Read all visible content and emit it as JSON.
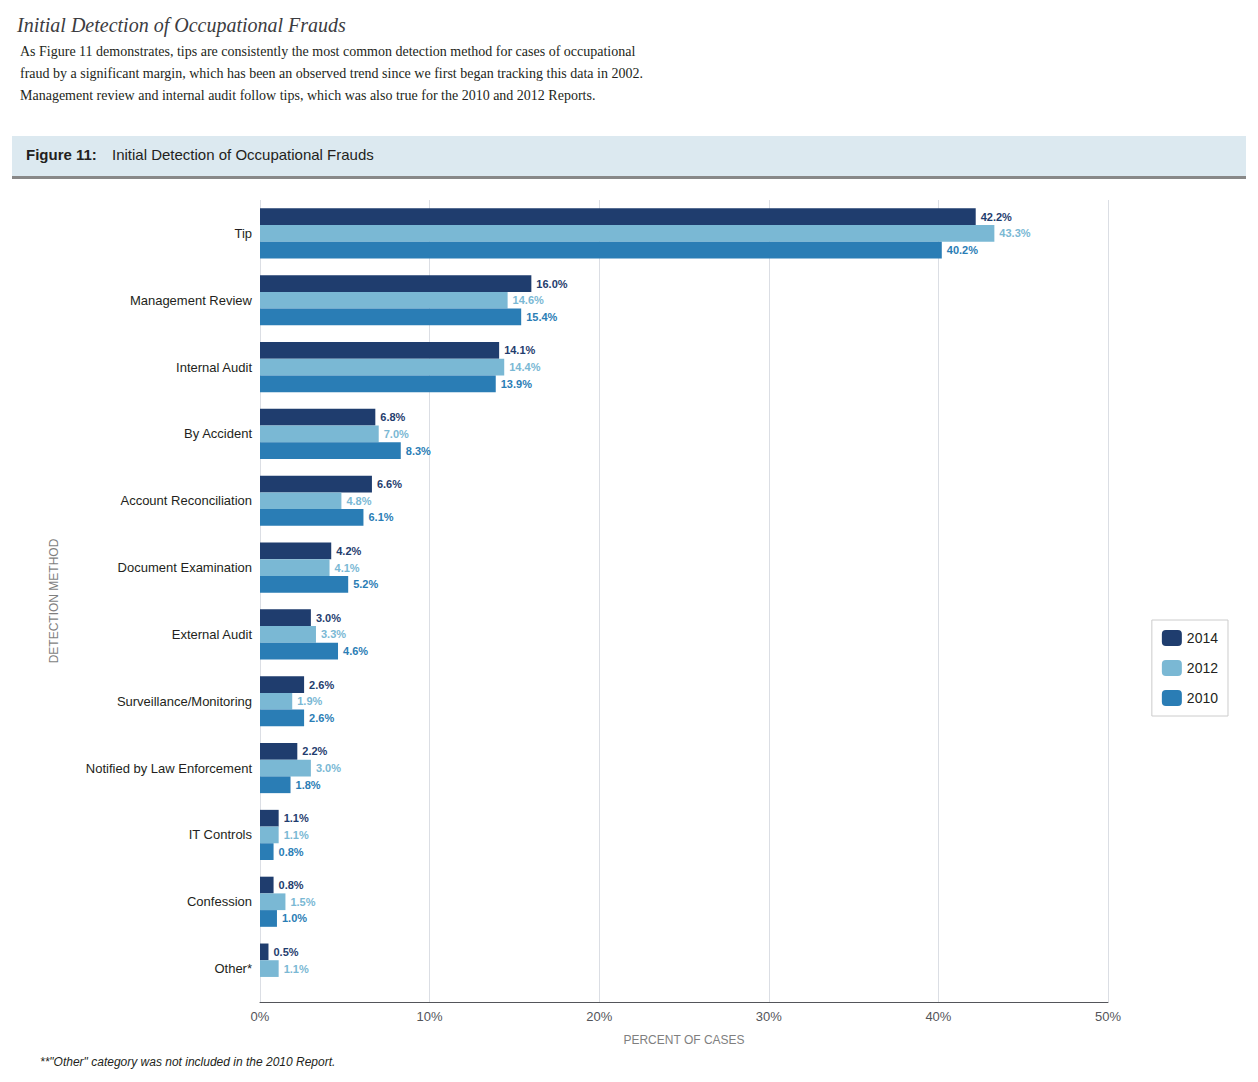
{
  "chart_data": {
    "type": "bar",
    "orientation": "horizontal",
    "title": "Initial Detection of Occupational Frauds",
    "subtitle": "As Figure 11 demonstrates, tips are consistently the most common detection method for cases of occupational\nfraud by a significant margin, which has been an observed trend since we first began tracking this data in 2002.\nManagement review and internal audit follow tips, which was also true for the 2010 and 2012 Reports.",
    "annotations": [
      "Figure 11:",
      "Initial Detection of Occupational Frauds",
      "**\"Other\" category was not included in the 2010 Report."
    ],
    "xlabel": "PERCENT OF CASES",
    "ylabel": "DETECTION METHOD",
    "categories": [
      "Tip",
      "Management Review",
      "Internal Audit",
      "By Accident",
      "Account Reconciliation",
      "Document Examination",
      "External Audit",
      "Surveillance/Monitoring",
      "Notified by Law Enforcement",
      "IT Controls",
      "Confession",
      "Other*"
    ],
    "series": [
      {
        "name": "2014",
        "color": "#1f3d6e",
        "values": [
          42.2,
          16.0,
          14.1,
          6.8,
          6.6,
          4.2,
          3.0,
          2.6,
          2.2,
          1.1,
          0.8,
          0.5
        ],
        "value_labels": [
          "42.2%",
          "16.0%",
          "14.1%",
          "6.8%",
          "6.6%",
          "4.2%",
          "3.0%",
          "2.6%",
          "2.2%",
          "1.1%",
          "0.8%",
          "0.5%"
        ]
      },
      {
        "name": "2012",
        "color": "#7ab8d4",
        "values": [
          43.3,
          14.6,
          14.4,
          7.0,
          4.8,
          4.1,
          3.3,
          1.9,
          3.0,
          1.1,
          1.5,
          1.1
        ],
        "value_labels": [
          "43.3%",
          "14.6%",
          "14.4%",
          "7.0%",
          "4.8%",
          "4.1%",
          "3.3%",
          "1.9%",
          "3.0%",
          "1.1%",
          "1.5%",
          "1.1%"
        ]
      },
      {
        "name": "2010",
        "color": "#2a7db5",
        "values": [
          40.2,
          15.4,
          13.9,
          8.3,
          6.1,
          5.2,
          4.6,
          2.6,
          1.8,
          0.8,
          1.0,
          null
        ],
        "value_labels": [
          "40.2%",
          "15.4%",
          "13.9%",
          "8.3%",
          "6.1%",
          "5.2%",
          "4.6%",
          "2.6%",
          "1.8%",
          "0.8%",
          "1.0%",
          null
        ]
      }
    ],
    "xlim": [
      0,
      50
    ],
    "xticks": [
      {
        "value": 0,
        "label": "0%"
      },
      {
        "value": 10,
        "label": "10%"
      },
      {
        "value": 20,
        "label": "20%"
      },
      {
        "value": 30,
        "label": "30%"
      },
      {
        "value": 40,
        "label": "40%"
      },
      {
        "value": 50,
        "label": "50%"
      }
    ],
    "grid": true,
    "legend": "right",
    "data_labels": true
  }
}
